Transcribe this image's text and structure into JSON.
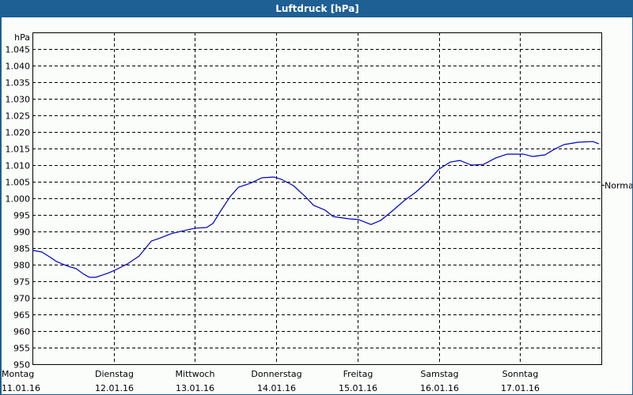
{
  "window": {
    "title": "Luftdruck [hPa]"
  },
  "chart_data": {
    "type": "line",
    "title": "Luftdruck [hPa]",
    "xlabel": "",
    "ylabel": "hPa",
    "ylim": [
      950,
      1050
    ],
    "yticks": [
      950,
      955,
      960,
      965,
      970,
      975,
      980,
      985,
      990,
      995,
      1000,
      1005,
      1010,
      1015,
      1020,
      1025,
      1030,
      1035,
      1040,
      1045
    ],
    "ytick_labels": [
      "950",
      "955",
      "960",
      "965",
      "970",
      "975",
      "980",
      "985",
      "990",
      "995",
      "1.000",
      "1.005",
      "1.010",
      "1.015",
      "1.020",
      "1.025",
      "1.030",
      "1.035",
      "1.040",
      "1.045"
    ],
    "x_unit": "hours since Montag 11.01.16 00:00",
    "xlim": [
      0,
      168
    ],
    "x_categories": [
      {
        "day": "Montag",
        "date": "11.01.16"
      },
      {
        "day": "Dienstag",
        "date": "12.01.16"
      },
      {
        "day": "Mittwoch",
        "date": "13.01.16"
      },
      {
        "day": "Donnerstag",
        "date": "14.01.16"
      },
      {
        "day": "Freitag",
        "date": "15.01.16"
      },
      {
        "day": "Samstag",
        "date": "16.01.16"
      },
      {
        "day": "Sonntag",
        "date": "17.01.16"
      }
    ],
    "grid": true,
    "grid_style": "dashed",
    "reference_line": {
      "label": "Normal",
      "value": 1004.0
    },
    "series": [
      {
        "name": "Luftdruck",
        "color": "#0000c0",
        "x": [
          0,
          2.8,
          4.7,
          7.0,
          10.5,
          12.9,
          15.2,
          16.8,
          18.7,
          22.2,
          24.3,
          28.0,
          31.5,
          35.1,
          37.4,
          40.9,
          44.4,
          48.1,
          51.4,
          53.3,
          55.6,
          58.4,
          60.8,
          64.3,
          67.8,
          71.3,
          73.6,
          77.1,
          80.6,
          83.0,
          86.5,
          88.8,
          93.5,
          96.3,
          100.0,
          102.8,
          106.3,
          109.8,
          113.3,
          116.9,
          120.1,
          123.4,
          126.2,
          129.7,
          133.2,
          136.7,
          140.2,
          144.9,
          147.7,
          151.4,
          154.2,
          157.0,
          161.2,
          165.5,
          167.3
        ],
        "values": [
          984.3,
          983.8,
          982.6,
          981.0,
          979.5,
          978.8,
          977.1,
          976.2,
          976.2,
          977.4,
          978.3,
          980.2,
          982.6,
          987.1,
          987.9,
          989.3,
          990.2,
          991.0,
          991.2,
          992.4,
          996.2,
          1000.5,
          1003.3,
          1004.5,
          1006.2,
          1006.4,
          1005.7,
          1003.8,
          1000.5,
          997.9,
          996.4,
          994.5,
          993.8,
          993.6,
          992.1,
          993.3,
          996.2,
          999.3,
          1001.9,
          1005.2,
          1008.8,
          1010.9,
          1011.4,
          1010.0,
          1010.2,
          1012.1,
          1013.3,
          1013.3,
          1012.6,
          1013.1,
          1014.8,
          1016.2,
          1016.9,
          1017.1,
          1016.4
        ]
      }
    ],
    "legend": null
  }
}
